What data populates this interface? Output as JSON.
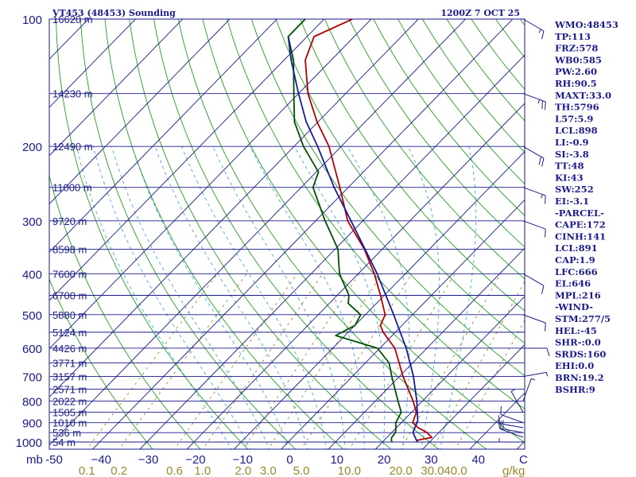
{
  "header": {
    "station": "VT453 (48453) Sounding",
    "time": "1200Z  7 OCT 25"
  },
  "colors": {
    "axis": "#1a1a8c",
    "isotherm": "#1a1a8c",
    "dry_adiabat": "#22a022",
    "moist_adiabat": "#44aadd",
    "mixing_ratio": "#9a8a2a",
    "temperature": "#b40000",
    "dewpoint": "#005000",
    "parcel": "#1a1a9a",
    "wind": "#1a1a8c"
  },
  "chart_data": {
    "type": "skew-t log-p sounding",
    "title": "VT453 (48453) Sounding",
    "subtitle": "1200Z  7 OCT 25",
    "xlabel": "C",
    "ylabel": "mb",
    "pressure_range_mb": [
      1000,
      100
    ],
    "temperature_range_c": [
      -50,
      50
    ],
    "pressure_ticks": [
      {
        "p": 100,
        "label": "100"
      },
      {
        "p": 200,
        "label": "200"
      },
      {
        "p": 300,
        "label": "300"
      },
      {
        "p": 400,
        "label": "400"
      },
      {
        "p": 500,
        "label": "500"
      },
      {
        "p": 600,
        "label": "600"
      },
      {
        "p": 700,
        "label": "700"
      },
      {
        "p": 800,
        "label": "800"
      },
      {
        "p": 900,
        "label": "900"
      },
      {
        "p": 1000,
        "label": "1000"
      }
    ],
    "height_levels": [
      {
        "p": 100,
        "label": "16620 m"
      },
      {
        "p": 150,
        "label": "14230 m"
      },
      {
        "p": 200,
        "label": "12490 m"
      },
      {
        "p": 250,
        "label": "11000 m"
      },
      {
        "p": 300,
        "label": "9720 m"
      },
      {
        "p": 350,
        "label": "8598 m"
      },
      {
        "p": 400,
        "label": "7600 m"
      },
      {
        "p": 450,
        "label": "6700 m"
      },
      {
        "p": 500,
        "label": "5880 m"
      },
      {
        "p": 550,
        "label": "5124 m"
      },
      {
        "p": 600,
        "label": "4426 m"
      },
      {
        "p": 650,
        "label": "3771 m"
      },
      {
        "p": 700,
        "label": "3157 m"
      },
      {
        "p": 750,
        "label": "2571 m"
      },
      {
        "p": 800,
        "label": "2022 m"
      },
      {
        "p": 850,
        "label": "1505 m"
      },
      {
        "p": 900,
        "label": "1010 m"
      },
      {
        "p": 950,
        "label": "536 m"
      },
      {
        "p": 1000,
        "label": "54 m"
      }
    ],
    "temperature_ticks": [
      {
        "t": -50,
        "label": "-50"
      },
      {
        "t": -40,
        "label": "−40"
      },
      {
        "t": -30,
        "label": "−30"
      },
      {
        "t": -20,
        "label": "−20"
      },
      {
        "t": -10,
        "label": "−10"
      },
      {
        "t": 0,
        "label": "0"
      },
      {
        "t": 10,
        "label": "10"
      },
      {
        "t": 20,
        "label": "20"
      },
      {
        "t": 30,
        "label": "30"
      },
      {
        "t": 40,
        "label": "40"
      }
    ],
    "mixing_ratio_ticks": [
      {
        "w": 0.1,
        "label": "0.1"
      },
      {
        "w": 0.2,
        "label": "0.2"
      },
      {
        "w": 0.6,
        "label": "0.6"
      },
      {
        "w": 1.0,
        "label": "1.0"
      },
      {
        "w": 2.0,
        "label": "2.0"
      },
      {
        "w": 3.0,
        "label": "3.0"
      },
      {
        "w": 5.0,
        "label": "5.0"
      },
      {
        "w": 10.0,
        "label": "10.0"
      },
      {
        "w": 20.0,
        "label": "20.0"
      },
      {
        "w": 30.0,
        "label": "30.0"
      },
      {
        "w": 40.0,
        "label": "40.0"
      }
    ],
    "mixing_ratio_unit": "g/kg",
    "series": [
      {
        "key": "temperature",
        "points": [
          [
            1000,
            27.4
          ],
          [
            990,
            27.0
          ],
          [
            975,
            29.5
          ],
          [
            950,
            27.5
          ],
          [
            925,
            24.6
          ],
          [
            900,
            22.4
          ],
          [
            850,
            21.0
          ],
          [
            800,
            18.0
          ],
          [
            700,
            10.8
          ],
          [
            600,
            3.2
          ],
          [
            550,
            -2.6
          ],
          [
            530,
            -4.6
          ],
          [
            500,
            -5.8
          ],
          [
            450,
            -10.8
          ],
          [
            400,
            -16.6
          ],
          [
            350,
            -23.8
          ],
          [
            300,
            -33.2
          ],
          [
            250,
            -41.8
          ],
          [
            200,
            -52.6
          ],
          [
            175,
            -60.2
          ],
          [
            150,
            -68.0
          ],
          [
            125,
            -75.5
          ],
          [
            110,
            -78.5
          ],
          [
            100,
            -74.0
          ]
        ]
      },
      {
        "key": "dewpoint",
        "points": [
          [
            1000,
            22.0
          ],
          [
            990,
            21.5
          ],
          [
            975,
            21.0
          ],
          [
            950,
            20.8
          ],
          [
            925,
            19.9
          ],
          [
            900,
            18.8
          ],
          [
            850,
            17.8
          ],
          [
            800,
            14.8
          ],
          [
            700,
            8.4
          ],
          [
            650,
            5.0
          ],
          [
            600,
            -0.5
          ],
          [
            560,
            -12.0
          ],
          [
            530,
            -10.0
          ],
          [
            500,
            -11.0
          ],
          [
            470,
            -16.0
          ],
          [
            450,
            -17.5
          ],
          [
            400,
            -24.0
          ],
          [
            350,
            -29.4
          ],
          [
            300,
            -38.0
          ],
          [
            250,
            -47.5
          ],
          [
            230,
            -49.5
          ],
          [
            200,
            -58.0
          ],
          [
            175,
            -65.0
          ],
          [
            150,
            -71.0
          ],
          [
            125,
            -78.0
          ],
          [
            110,
            -84.0
          ],
          [
            100,
            -84.0
          ]
        ]
      },
      {
        "key": "parcel",
        "points": [
          [
            1000,
            27.4
          ],
          [
            950,
            24.5
          ],
          [
            891,
            23.1
          ],
          [
            850,
            21.2
          ],
          [
            800,
            18.8
          ],
          [
            700,
            13.0
          ],
          [
            600,
            5.6
          ],
          [
            500,
            -4.0
          ],
          [
            400,
            -16.0
          ],
          [
            300,
            -32.5
          ],
          [
            250,
            -43.0
          ],
          [
            200,
            -55.0
          ],
          [
            175,
            -62.5
          ],
          [
            150,
            -70.0
          ],
          [
            125,
            -78.5
          ],
          [
            110,
            -84.0
          ]
        ]
      }
    ],
    "wind_barbs": [
      {
        "p": 1000,
        "dir": 90,
        "kt": 5
      },
      {
        "p": 975,
        "dir": 110,
        "kt": 10
      },
      {
        "p": 950,
        "dir": 100,
        "kt": 15
      },
      {
        "p": 925,
        "dir": 100,
        "kt": 15
      },
      {
        "p": 900,
        "dir": 110,
        "kt": 10
      },
      {
        "p": 850,
        "dir": 150,
        "kt": 5
      },
      {
        "p": 800,
        "dir": 200,
        "kt": 5
      },
      {
        "p": 700,
        "dir": 260,
        "kt": 5
      },
      {
        "p": 600,
        "dir": 270,
        "kt": 10
      },
      {
        "p": 500,
        "dir": 290,
        "kt": 10
      },
      {
        "p": 400,
        "dir": 300,
        "kt": 10
      },
      {
        "p": 300,
        "dir": 290,
        "kt": 10
      },
      {
        "p": 250,
        "dir": 290,
        "kt": 15
      },
      {
        "p": 200,
        "dir": 300,
        "kt": 20
      },
      {
        "p": 150,
        "dir": 290,
        "kt": 25
      },
      {
        "p": 100,
        "dir": 300,
        "kt": 15
      }
    ]
  },
  "indices": [
    "WMO:48453",
    "TP:113",
    "FRZ:578",
    "WB0:585",
    "PW:2.60",
    "RH:90.5",
    "MAXT:33.0",
    "TH:5796",
    "L57:5.9",
    "LCL:898",
    "LI:-0.9",
    "SI:-3.8",
    "TT:48",
    "KI:43",
    "SW:252",
    "EI:-3.1",
    "-PARCEL-",
    "CAPE:172",
    "CINH:141",
    "LCL:891",
    "CAP:1.9",
    "LFC:666",
    "EL:646",
    "MPL:216",
    "-WIND-",
    "STM:277/5",
    "HEL:-45",
    "SHR-:0.0",
    "SRDS:160",
    "EHI:0.0",
    "BRN:19.2",
    "BSHR:9"
  ]
}
